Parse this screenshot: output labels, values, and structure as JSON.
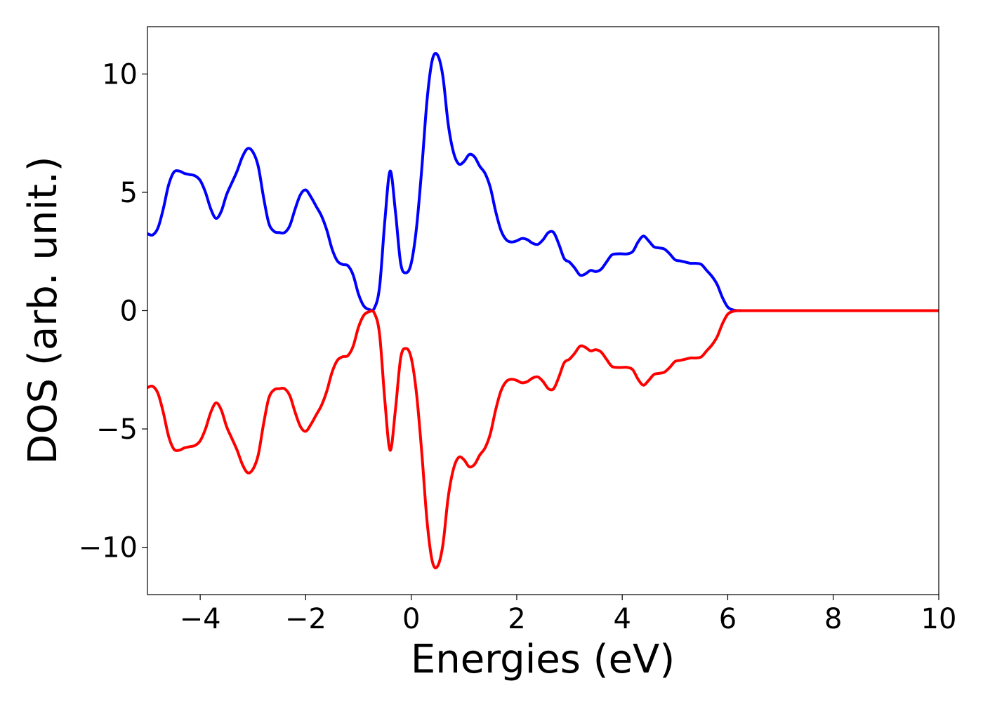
{
  "chart_data": {
    "type": "line",
    "title": "",
    "xlabel": "Energies (eV)",
    "ylabel": "DOS (arb. unit.)",
    "xlim": [
      -5,
      10
    ],
    "ylim": [
      -12,
      12
    ],
    "grid": false,
    "x_ticks": [
      -4,
      -2,
      0,
      2,
      4,
      6,
      8,
      10
    ],
    "x_tick_labels": [
      "−4",
      "−2",
      "0",
      "2",
      "4",
      "6",
      "8",
      "10"
    ],
    "y_ticks": [
      -10,
      -5,
      0,
      5,
      10
    ],
    "y_tick_labels": [
      "−10",
      "−5",
      "0",
      "5",
      "10"
    ],
    "series": [
      {
        "color": "#0000ff",
        "x": [
          -5.0,
          -4.9,
          -4.8,
          -4.7,
          -4.6,
          -4.5,
          -4.4,
          -4.3,
          -4.2,
          -4.1,
          -4.0,
          -3.9,
          -3.8,
          -3.7,
          -3.6,
          -3.5,
          -3.4,
          -3.3,
          -3.2,
          -3.1,
          -3.0,
          -2.9,
          -2.8,
          -2.7,
          -2.6,
          -2.5,
          -2.4,
          -2.3,
          -2.2,
          -2.1,
          -2.0,
          -1.9,
          -1.8,
          -1.7,
          -1.6,
          -1.5,
          -1.4,
          -1.3,
          -1.2,
          -1.1,
          -1.0,
          -0.9,
          -0.8,
          -0.7,
          -0.6,
          -0.5,
          -0.4,
          -0.3,
          -0.2,
          -0.1,
          0.0,
          0.1,
          0.2,
          0.3,
          0.4,
          0.5,
          0.6,
          0.7,
          0.8,
          0.9,
          1.0,
          1.1,
          1.2,
          1.3,
          1.4,
          1.5,
          1.6,
          1.7,
          1.8,
          1.9,
          2.0,
          2.1,
          2.2,
          2.3,
          2.4,
          2.5,
          2.6,
          2.7,
          2.8,
          2.9,
          3.0,
          3.1,
          3.2,
          3.3,
          3.4,
          3.5,
          3.6,
          3.7,
          3.8,
          3.9,
          4.0,
          4.1,
          4.2,
          4.3,
          4.4,
          4.5,
          4.6,
          4.7,
          4.8,
          4.9,
          5.0,
          5.1,
          5.2,
          5.3,
          5.4,
          5.5,
          5.6,
          5.7,
          5.8,
          5.9,
          6.0,
          6.1,
          6.2,
          6.3,
          6.4,
          6.5,
          6.6,
          6.7,
          6.8,
          6.9,
          7.0,
          7.1,
          7.2,
          7.3,
          7.4,
          7.5,
          7.6,
          7.7,
          7.8,
          7.9,
          8.0,
          8.1,
          8.2,
          8.3,
          8.4,
          8.5,
          8.6,
          9.0,
          9.5,
          10.0
        ],
        "y": [
          3.25,
          3.2,
          3.5,
          4.3,
          5.3,
          5.85,
          5.9,
          5.8,
          5.75,
          5.7,
          5.5,
          5.0,
          4.3,
          3.9,
          4.2,
          4.9,
          5.4,
          5.9,
          6.5,
          6.85,
          6.7,
          6.1,
          4.8,
          3.7,
          3.35,
          3.3,
          3.3,
          3.6,
          4.3,
          4.9,
          5.1,
          4.8,
          4.4,
          4.0,
          3.4,
          2.6,
          2.1,
          1.95,
          1.9,
          1.5,
          0.7,
          0.2,
          0.05,
          0.1,
          1.0,
          3.8,
          5.9,
          4.2,
          2.0,
          1.6,
          2.0,
          3.5,
          6.0,
          8.9,
          10.6,
          10.8,
          9.9,
          7.9,
          6.7,
          6.2,
          6.3,
          6.6,
          6.5,
          6.1,
          5.8,
          5.2,
          4.2,
          3.4,
          3.0,
          2.9,
          2.95,
          3.05,
          3.0,
          2.85,
          2.8,
          3.0,
          3.3,
          3.3,
          2.8,
          2.2,
          2.05,
          1.8,
          1.5,
          1.55,
          1.7,
          1.65,
          1.75,
          2.05,
          2.35,
          2.4,
          2.4,
          2.4,
          2.5,
          2.9,
          3.15,
          2.95,
          2.7,
          2.65,
          2.6,
          2.4,
          2.15,
          2.1,
          2.05,
          2.0,
          2.0,
          1.95,
          1.7,
          1.45,
          1.1,
          0.55,
          0.15,
          0.03,
          0.0,
          0.0,
          0.0,
          0.0,
          0.0,
          0.0,
          0.0,
          0.0,
          0.0,
          0.0,
          0.0,
          0.0,
          0.0,
          0.0,
          0.0,
          0.0,
          0.0,
          0.0,
          0.0,
          0.0,
          0.0,
          0.0,
          0.0,
          0.0,
          0.0,
          0.0,
          0.0,
          0.0
        ]
      },
      {
        "color": "#ff0000",
        "x": [
          -5.0,
          -4.9,
          -4.8,
          -4.7,
          -4.6,
          -4.5,
          -4.4,
          -4.3,
          -4.2,
          -4.1,
          -4.0,
          -3.9,
          -3.8,
          -3.7,
          -3.6,
          -3.5,
          -3.4,
          -3.3,
          -3.2,
          -3.1,
          -3.0,
          -2.9,
          -2.8,
          -2.7,
          -2.6,
          -2.5,
          -2.4,
          -2.3,
          -2.2,
          -2.1,
          -2.0,
          -1.9,
          -1.8,
          -1.7,
          -1.6,
          -1.5,
          -1.4,
          -1.3,
          -1.2,
          -1.1,
          -1.0,
          -0.9,
          -0.8,
          -0.7,
          -0.6,
          -0.5,
          -0.4,
          -0.3,
          -0.2,
          -0.1,
          0.0,
          0.1,
          0.2,
          0.3,
          0.4,
          0.5,
          0.6,
          0.7,
          0.8,
          0.9,
          1.0,
          1.1,
          1.2,
          1.3,
          1.4,
          1.5,
          1.6,
          1.7,
          1.8,
          1.9,
          2.0,
          2.1,
          2.2,
          2.3,
          2.4,
          2.5,
          2.6,
          2.7,
          2.8,
          2.9,
          3.0,
          3.1,
          3.2,
          3.3,
          3.4,
          3.5,
          3.6,
          3.7,
          3.8,
          3.9,
          4.0,
          4.1,
          4.2,
          4.3,
          4.4,
          4.5,
          4.6,
          4.7,
          4.8,
          4.9,
          5.0,
          5.1,
          5.2,
          5.3,
          5.4,
          5.5,
          5.6,
          5.7,
          5.8,
          5.9,
          6.0,
          6.1,
          6.2,
          6.3,
          6.4,
          6.5,
          6.6,
          6.7,
          6.8,
          6.9,
          7.0,
          7.1,
          7.2,
          7.3,
          7.4,
          7.5,
          7.6,
          7.7,
          7.8,
          7.9,
          8.0,
          8.1,
          8.2,
          8.3,
          8.4,
          8.5,
          8.6,
          9.0,
          9.5,
          10.0
        ],
        "y": [
          -3.25,
          -3.2,
          -3.5,
          -4.3,
          -5.3,
          -5.85,
          -5.9,
          -5.8,
          -5.75,
          -5.7,
          -5.5,
          -5.0,
          -4.3,
          -3.9,
          -4.2,
          -4.9,
          -5.4,
          -5.9,
          -6.5,
          -6.85,
          -6.7,
          -6.1,
          -4.8,
          -3.7,
          -3.35,
          -3.3,
          -3.3,
          -3.6,
          -4.3,
          -4.9,
          -5.1,
          -4.8,
          -4.4,
          -4.0,
          -3.4,
          -2.6,
          -2.1,
          -1.95,
          -1.9,
          -1.5,
          -0.7,
          -0.2,
          -0.05,
          -0.1,
          -1.0,
          -3.8,
          -5.9,
          -4.2,
          -2.0,
          -1.6,
          -2.0,
          -3.5,
          -6.0,
          -8.9,
          -10.6,
          -10.8,
          -9.9,
          -7.9,
          -6.7,
          -6.2,
          -6.3,
          -6.6,
          -6.5,
          -6.1,
          -5.8,
          -5.2,
          -4.2,
          -3.4,
          -3.0,
          -2.9,
          -2.95,
          -3.05,
          -3.0,
          -2.85,
          -2.8,
          -3.0,
          -3.3,
          -3.3,
          -2.8,
          -2.2,
          -2.05,
          -1.8,
          -1.5,
          -1.55,
          -1.7,
          -1.65,
          -1.75,
          -2.05,
          -2.35,
          -2.4,
          -2.4,
          -2.4,
          -2.5,
          -2.9,
          -3.15,
          -2.95,
          -2.7,
          -2.65,
          -2.6,
          -2.4,
          -2.15,
          -2.1,
          -2.05,
          -2.0,
          -2.0,
          -1.95,
          -1.7,
          -1.45,
          -1.1,
          -0.55,
          -0.15,
          -0.03,
          0.0,
          0.0,
          0.0,
          0.0,
          0.0,
          0.0,
          0.0,
          0.0,
          0.0,
          0.0,
          0.0,
          0.0,
          0.0,
          0.0,
          0.0,
          0.0,
          0.0,
          0.0,
          0.0,
          0.0,
          0.0,
          0.0,
          0.0,
          0.0,
          0.0,
          0.0,
          0.0,
          0.0
        ]
      }
    ]
  }
}
